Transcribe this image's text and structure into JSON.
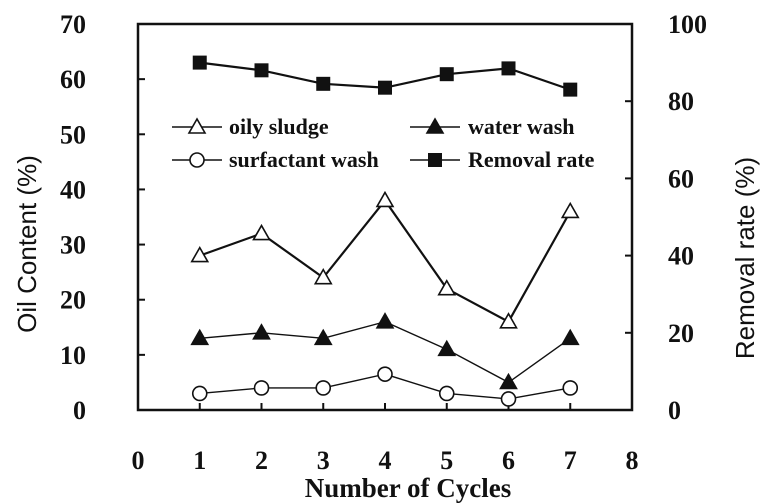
{
  "chart_data": {
    "type": "line",
    "xlabel": "Number of Cycles",
    "ylabel_left": "Oil Content (%)",
    "ylabel_right": "Removal rate (%)",
    "xlim": [
      0,
      8
    ],
    "ylim_left": [
      0,
      70
    ],
    "ylim_right": [
      0,
      100
    ],
    "x_ticks": [
      "0",
      "1",
      "2",
      "3",
      "4",
      "5",
      "6",
      "7",
      "8"
    ],
    "y_left_ticks": [
      "0",
      "10",
      "20",
      "30",
      "40",
      "50",
      "60",
      "70"
    ],
    "y_right_ticks": [
      "0",
      "20",
      "40",
      "60",
      "80",
      "100"
    ],
    "x": [
      1,
      2,
      3,
      4,
      5,
      6,
      7
    ],
    "series": [
      {
        "name": "oily sludge",
        "axis": "left",
        "marker": "triangle-open",
        "values": [
          28,
          32,
          24,
          38,
          22,
          16,
          36
        ]
      },
      {
        "name": "water wash",
        "axis": "left",
        "marker": "triangle-filled",
        "values": [
          13,
          14,
          13,
          16,
          11,
          5,
          13
        ]
      },
      {
        "name": "surfactant wash",
        "axis": "left",
        "marker": "circle-open",
        "values": [
          3,
          4,
          4,
          6.5,
          3,
          2,
          4
        ]
      },
      {
        "name": "Removal rate",
        "axis": "right",
        "marker": "square-filled",
        "values": [
          90,
          88,
          84.5,
          83.5,
          87,
          88.5,
          83
        ]
      }
    ],
    "legend_placement": "top-center"
  }
}
